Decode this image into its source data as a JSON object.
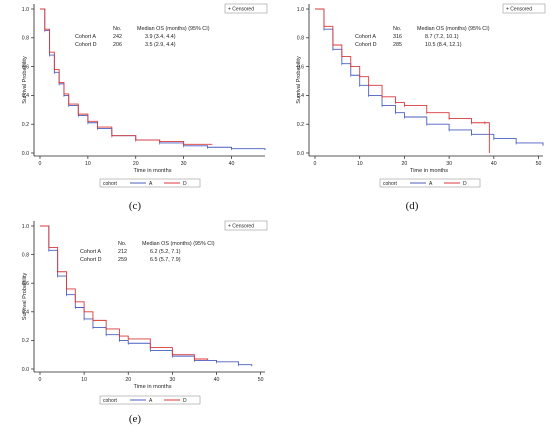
{
  "chart_data": [
    {
      "type": "line",
      "title": "",
      "xlabel": "Time in months",
      "ylabel": "Survival Probability",
      "xlim": [
        0,
        47
      ],
      "ylim": [
        0,
        1.0
      ],
      "xticks": [
        0,
        10,
        20,
        30,
        40
      ],
      "yticks": [
        0.0,
        0.2,
        0.4,
        0.6,
        0.8,
        1.0
      ],
      "censored_label": "+ Censored",
      "legend_title": "cohort",
      "table_header": [
        "",
        "No.",
        "Median OS (months) (95% CI)"
      ],
      "table_rows": [
        [
          "Cohort A",
          "242",
          "3.9 (3.4, 4.4)"
        ],
        [
          "Cohort D",
          "206",
          "3.5 (2.9, 4.4)"
        ]
      ],
      "caption": "(c)",
      "series": [
        {
          "name": "A",
          "color": "#4a5fc1",
          "x": [
            0,
            1,
            2,
            3,
            4,
            5,
            6,
            8,
            10,
            12,
            15,
            20,
            25,
            30,
            35,
            40,
            47
          ],
          "y": [
            1.0,
            0.85,
            0.68,
            0.56,
            0.48,
            0.4,
            0.33,
            0.26,
            0.21,
            0.17,
            0.12,
            0.09,
            0.07,
            0.05,
            0.04,
            0.03,
            0.02
          ]
        },
        {
          "name": "D",
          "color": "#d9393a",
          "x": [
            0,
            1,
            2,
            3,
            4,
            5,
            6,
            8,
            10,
            12,
            15,
            20,
            25,
            30,
            36
          ],
          "y": [
            1.0,
            0.86,
            0.7,
            0.58,
            0.49,
            0.41,
            0.34,
            0.27,
            0.22,
            0.18,
            0.12,
            0.09,
            0.08,
            0.06,
            0.06
          ]
        }
      ]
    },
    {
      "type": "line",
      "title": "",
      "xlabel": "Time in months",
      "ylabel": "Survival Probability",
      "xlim": [
        0,
        51
      ],
      "ylim": [
        0,
        1.0
      ],
      "xticks": [
        0,
        10,
        20,
        30,
        40,
        50
      ],
      "yticks": [
        0.0,
        0.2,
        0.4,
        0.6,
        0.8,
        1.0
      ],
      "censored_label": "+ Censored",
      "legend_title": "cohort",
      "table_header": [
        "",
        "No.",
        "Median OS (months) (95% CI)"
      ],
      "table_rows": [
        [
          "Cohort A",
          "316",
          "8.7 (7.2, 10.1)"
        ],
        [
          "Cohort D",
          "285",
          "10.5 (8.4, 12.1)"
        ]
      ],
      "caption": "(d)",
      "series": [
        {
          "name": "A",
          "color": "#4a5fc1",
          "x": [
            0,
            2,
            4,
            6,
            8,
            10,
            12,
            15,
            18,
            20,
            25,
            30,
            35,
            40,
            45,
            51
          ],
          "y": [
            1.0,
            0.86,
            0.72,
            0.62,
            0.54,
            0.47,
            0.4,
            0.33,
            0.28,
            0.25,
            0.2,
            0.16,
            0.13,
            0.1,
            0.07,
            0.05
          ]
        },
        {
          "name": "D",
          "color": "#d9393a",
          "x": [
            0,
            2,
            4,
            6,
            8,
            10,
            12,
            15,
            18,
            20,
            25,
            30,
            35,
            38,
            39
          ],
          "y": [
            1.0,
            0.88,
            0.75,
            0.67,
            0.6,
            0.53,
            0.47,
            0.39,
            0.35,
            0.33,
            0.28,
            0.24,
            0.21,
            0.21,
            0.0
          ]
        }
      ]
    },
    {
      "type": "line",
      "title": "",
      "xlabel": "Time in months",
      "ylabel": "Survival Probability",
      "xlim": [
        0,
        51
      ],
      "ylim": [
        0,
        1.0
      ],
      "xticks": [
        0,
        10,
        20,
        30,
        40,
        50
      ],
      "yticks": [
        0.0,
        0.2,
        0.4,
        0.6,
        0.8,
        1.0
      ],
      "censored_label": "+ Censored",
      "legend_title": "cohort",
      "table_header": [
        "",
        "No.",
        "Median OS (months) (95% CI)"
      ],
      "table_rows": [
        [
          "Cohort A",
          "212",
          "6.2 (5.2, 7.1)"
        ],
        [
          "Cohort D",
          "259",
          "6.5 (5.7, 7.9)"
        ]
      ],
      "caption": "(e)",
      "series": [
        {
          "name": "A",
          "color": "#4a5fc1",
          "x": [
            0,
            2,
            4,
            6,
            8,
            10,
            12,
            15,
            18,
            20,
            25,
            30,
            35,
            40,
            45,
            48
          ],
          "y": [
            1.0,
            0.83,
            0.65,
            0.52,
            0.43,
            0.35,
            0.29,
            0.24,
            0.2,
            0.18,
            0.13,
            0.09,
            0.06,
            0.05,
            0.03,
            0.02
          ]
        },
        {
          "name": "D",
          "color": "#d9393a",
          "x": [
            0,
            2,
            4,
            6,
            8,
            10,
            12,
            15,
            18,
            20,
            25,
            30,
            35,
            38
          ],
          "y": [
            1.0,
            0.85,
            0.68,
            0.56,
            0.47,
            0.4,
            0.34,
            0.28,
            0.23,
            0.21,
            0.15,
            0.1,
            0.07,
            0.06
          ]
        }
      ]
    }
  ]
}
